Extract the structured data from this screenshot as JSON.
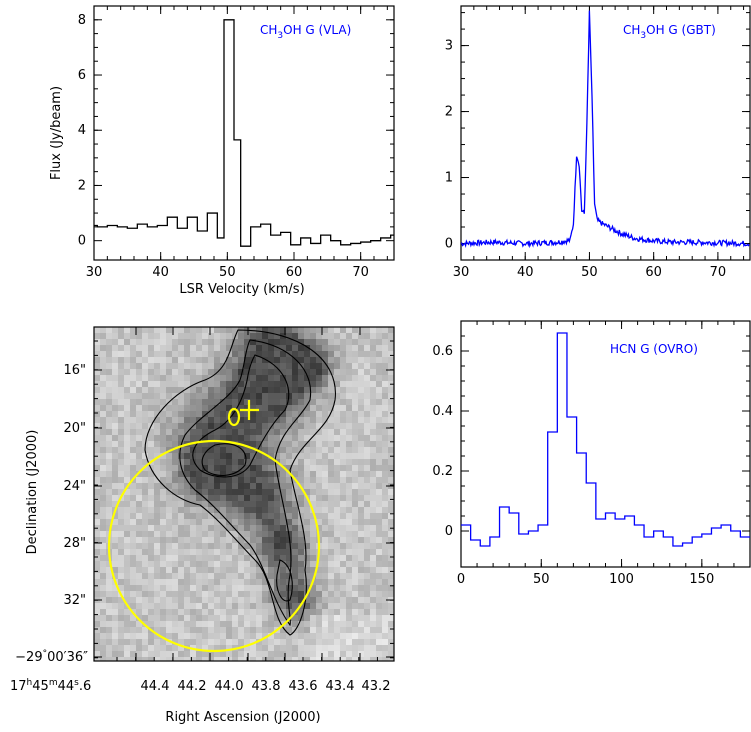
{
  "chart_data": [
    {
      "id": "ch3oh-vla",
      "type": "line",
      "title": "CH3OH G (VLA)",
      "xlabel": "LSR Velocity (km/s)",
      "ylabel": "Flux (Jy/beam)",
      "xlim": [
        30,
        75
      ],
      "ylim": [
        -0.7,
        8.5
      ],
      "xticks": [
        "30",
        "40",
        "50",
        "60",
        "70"
      ],
      "yticks": [
        "0",
        "2",
        "4",
        "6",
        "8"
      ],
      "color": "#000000",
      "steps": [
        [
          28.5,
          0.55
        ],
        [
          30.5,
          0.5
        ],
        [
          32,
          0.55
        ],
        [
          33.5,
          0.5
        ],
        [
          35,
          0.45
        ],
        [
          36.5,
          0.6
        ],
        [
          38,
          0.5
        ],
        [
          39.5,
          0.55
        ],
        [
          41,
          0.85
        ],
        [
          42.5,
          0.45
        ],
        [
          44,
          0.85
        ],
        [
          45.5,
          0.35
        ],
        [
          47,
          1.0
        ],
        [
          48.5,
          0.1
        ],
        [
          49.5,
          8.0
        ],
        [
          51,
          3.65
        ],
        [
          52,
          -0.2
        ],
        [
          53.5,
          0.5
        ],
        [
          55,
          0.6
        ],
        [
          56.5,
          0.2
        ],
        [
          58,
          0.3
        ],
        [
          59.5,
          -0.15
        ],
        [
          61,
          0.1
        ],
        [
          62.5,
          -0.1
        ],
        [
          64,
          0.2
        ],
        [
          65.5,
          0.0
        ],
        [
          67,
          -0.15
        ],
        [
          68.5,
          -0.1
        ],
        [
          70,
          -0.05
        ],
        [
          71.5,
          0.0
        ],
        [
          73,
          0.1
        ],
        [
          74.5,
          0.2
        ]
      ]
    },
    {
      "id": "ch3oh-gbt",
      "type": "line",
      "title": "CH3OH G (GBT)",
      "xlabel": "",
      "ylabel": "",
      "xlim": [
        30,
        75
      ],
      "ylim": [
        -0.25,
        3.6
      ],
      "xticks": [
        "30",
        "40",
        "50",
        "60",
        "70"
      ],
      "yticks": [
        "0",
        "1",
        "2",
        "3"
      ],
      "color": "#0000ff",
      "points": [
        [
          30,
          0.0
        ],
        [
          35,
          0.02
        ],
        [
          40,
          0.0
        ],
        [
          45,
          0.02
        ],
        [
          47,
          0.05
        ],
        [
          47.5,
          0.3
        ],
        [
          48,
          1.35
        ],
        [
          48.4,
          1.2
        ],
        [
          48.8,
          0.5
        ],
        [
          49.2,
          0.45
        ],
        [
          49.6,
          1.8
        ],
        [
          50,
          3.5
        ],
        [
          50.4,
          2.2
        ],
        [
          50.8,
          0.6
        ],
        [
          51.2,
          0.35
        ],
        [
          52,
          0.3
        ],
        [
          53,
          0.25
        ],
        [
          55,
          0.15
        ],
        [
          57,
          0.08
        ],
        [
          60,
          0.04
        ],
        [
          63,
          0.02
        ],
        [
          66,
          0.02
        ],
        [
          70,
          0.01
        ],
        [
          75,
          0.0
        ]
      ]
    },
    {
      "id": "map",
      "type": "heatmap",
      "xlabel": "Right Ascension (J2000)",
      "ylabel": "Declination (J2000)",
      "xticks": [
        "17h45m44s.6",
        "44.4",
        "44.2",
        "44.0",
        "43.8",
        "43.6",
        "43.4",
        "43.2"
      ],
      "yticks": [
        "16\"",
        "20\"",
        "24\"",
        "28\"",
        "32\"",
        "-29°00'36\""
      ],
      "circle_color": "#ffff00"
    },
    {
      "id": "hcn-ovro",
      "type": "line",
      "title": "HCN G (OVRO)",
      "xlabel": "",
      "ylabel": "",
      "xlim": [
        0,
        180
      ],
      "ylim": [
        -0.12,
        0.7
      ],
      "xticks": [
        "0",
        "50",
        "100",
        "150"
      ],
      "yticks": [
        "0",
        "0.2",
        "0.4",
        "0.6"
      ],
      "color": "#0000ff",
      "steps": [
        [
          0,
          0.02
        ],
        [
          6,
          -0.03
        ],
        [
          12,
          -0.05
        ],
        [
          18,
          -0.02
        ],
        [
          24,
          0.08
        ],
        [
          30,
          0.06
        ],
        [
          36,
          -0.01
        ],
        [
          42,
          0.0
        ],
        [
          48,
          0.02
        ],
        [
          54,
          0.33
        ],
        [
          60,
          0.66
        ],
        [
          66,
          0.38
        ],
        [
          72,
          0.26
        ],
        [
          78,
          0.16
        ],
        [
          84,
          0.04
        ],
        [
          90,
          0.06
        ],
        [
          96,
          0.04
        ],
        [
          102,
          0.05
        ],
        [
          108,
          0.02
        ],
        [
          114,
          -0.02
        ],
        [
          120,
          0.0
        ],
        [
          126,
          -0.02
        ],
        [
          132,
          -0.05
        ],
        [
          138,
          -0.04
        ],
        [
          144,
          -0.02
        ],
        [
          150,
          -0.01
        ],
        [
          156,
          0.01
        ],
        [
          162,
          0.02
        ],
        [
          168,
          0.0
        ],
        [
          174,
          -0.02
        ],
        [
          180,
          -0.02
        ]
      ]
    }
  ],
  "labels": {
    "vla_title_main": "CH",
    "vla_title_sub": "3",
    "vla_title_rest": "OH G (VLA)",
    "gbt_title_main": "CH",
    "gbt_title_sub": "3",
    "gbt_title_rest": "OH G (GBT)",
    "hcn_title": "HCN G (OVRO)",
    "ra_prefix_h": "17",
    "ra_prefix_m": "45",
    "ra_prefix_s": "44",
    "ra_prefix_frac": ".6",
    "dec_last_deg": "−29",
    "dec_last_rest": "00′36″"
  }
}
